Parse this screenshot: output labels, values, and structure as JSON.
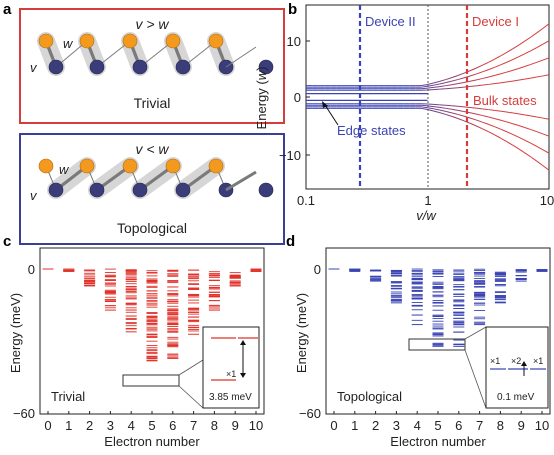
{
  "panels": {
    "a": {
      "label": "a",
      "trivial": {
        "condition": "v > w",
        "name": "Trivial",
        "v": "v",
        "w": "w",
        "border": "#d63c3c"
      },
      "topological": {
        "condition": "v < w",
        "name": "Topological",
        "v": "v",
        "w": "w",
        "border": "#3b3f95"
      },
      "colors": {
        "orange": "#f39a1e",
        "navy": "#3b3d7a"
      }
    },
    "b": {
      "label": "b",
      "ylabel": "Energy (",
      "ylabel_w": "w",
      "ylabel_end": ")",
      "xlabel": "v/w",
      "device2": "Device II",
      "device1": "Device I",
      "bulk_label": "Bulk states",
      "edge_label": "Edge states",
      "yticks": [
        "10",
        "0",
        "−10"
      ],
      "xticks": [
        "0.1",
        "1",
        "10"
      ]
    },
    "c": {
      "label": "c",
      "ylabel": "Energy (meV)",
      "xlabel": "Electron number",
      "name": "Trivial",
      "inset_mult": "×1",
      "inset_gap": "3.85 meV",
      "yticks": [
        "0",
        "−60"
      ],
      "xticks": [
        "0",
        "1",
        "2",
        "3",
        "4",
        "5",
        "6",
        "7",
        "8",
        "9",
        "10"
      ]
    },
    "d": {
      "label": "d",
      "ylabel": "Energy (meV)",
      "xlabel": "Electron number",
      "name": "Topological",
      "inset_mults": [
        "×1",
        "×2",
        "×1"
      ],
      "inset_gap": "0.1 meV",
      "yticks": [
        "0",
        "−60"
      ],
      "xticks": [
        "0",
        "1",
        "2",
        "3",
        "4",
        "5",
        "6",
        "7",
        "8",
        "9",
        "10"
      ]
    }
  },
  "chart_data": [
    {
      "type": "line",
      "panel": "b",
      "xlabel": "v/w",
      "ylabel": "Energy (w)",
      "xscale": "log",
      "xlim": [
        0.1,
        10
      ],
      "ylim": [
        -15,
        15
      ],
      "series": [
        {
          "name": "Edge states",
          "x": [
            0.1,
            0.3,
            1,
            2.2,
            10
          ],
          "y": [
            0.5,
            0.5,
            0.5,
            0.5,
            0.5
          ]
        },
        {
          "name": "Bulk states",
          "x": [
            0.1,
            1,
            2.2,
            10
          ],
          "y": [
            1.5,
            2,
            3.5,
            12
          ]
        }
      ],
      "markers": [
        {
          "name": "Device II",
          "x": 0.28
        },
        {
          "name": "Device I",
          "x": 2.2
        }
      ]
    },
    {
      "type": "scatter",
      "panel": "c",
      "xlabel": "Electron number",
      "ylabel": "Energy (meV)",
      "xlim": [
        0,
        10
      ],
      "ylim": [
        -60,
        0
      ],
      "categories": [
        0,
        1,
        2,
        3,
        4,
        5,
        6,
        7,
        8,
        9,
        10
      ],
      "lowest_level": [
        0,
        -1,
        -7,
        -17,
        -26,
        -38,
        -37,
        -27,
        -17,
        -7,
        -1
      ],
      "color": "#e0322a"
    },
    {
      "type": "scatter",
      "panel": "d",
      "xlabel": "Electron number",
      "ylabel": "Energy (meV)",
      "xlim": [
        0,
        10
      ],
      "ylim": [
        -60,
        0
      ],
      "categories": [
        0,
        1,
        2,
        3,
        4,
        5,
        6,
        7,
        8,
        9,
        10
      ],
      "lowest_level": [
        0,
        -1,
        -5,
        -14,
        -23,
        -32,
        -32,
        -23,
        -14,
        -5,
        -1
      ],
      "color": "#3b44b3"
    }
  ]
}
